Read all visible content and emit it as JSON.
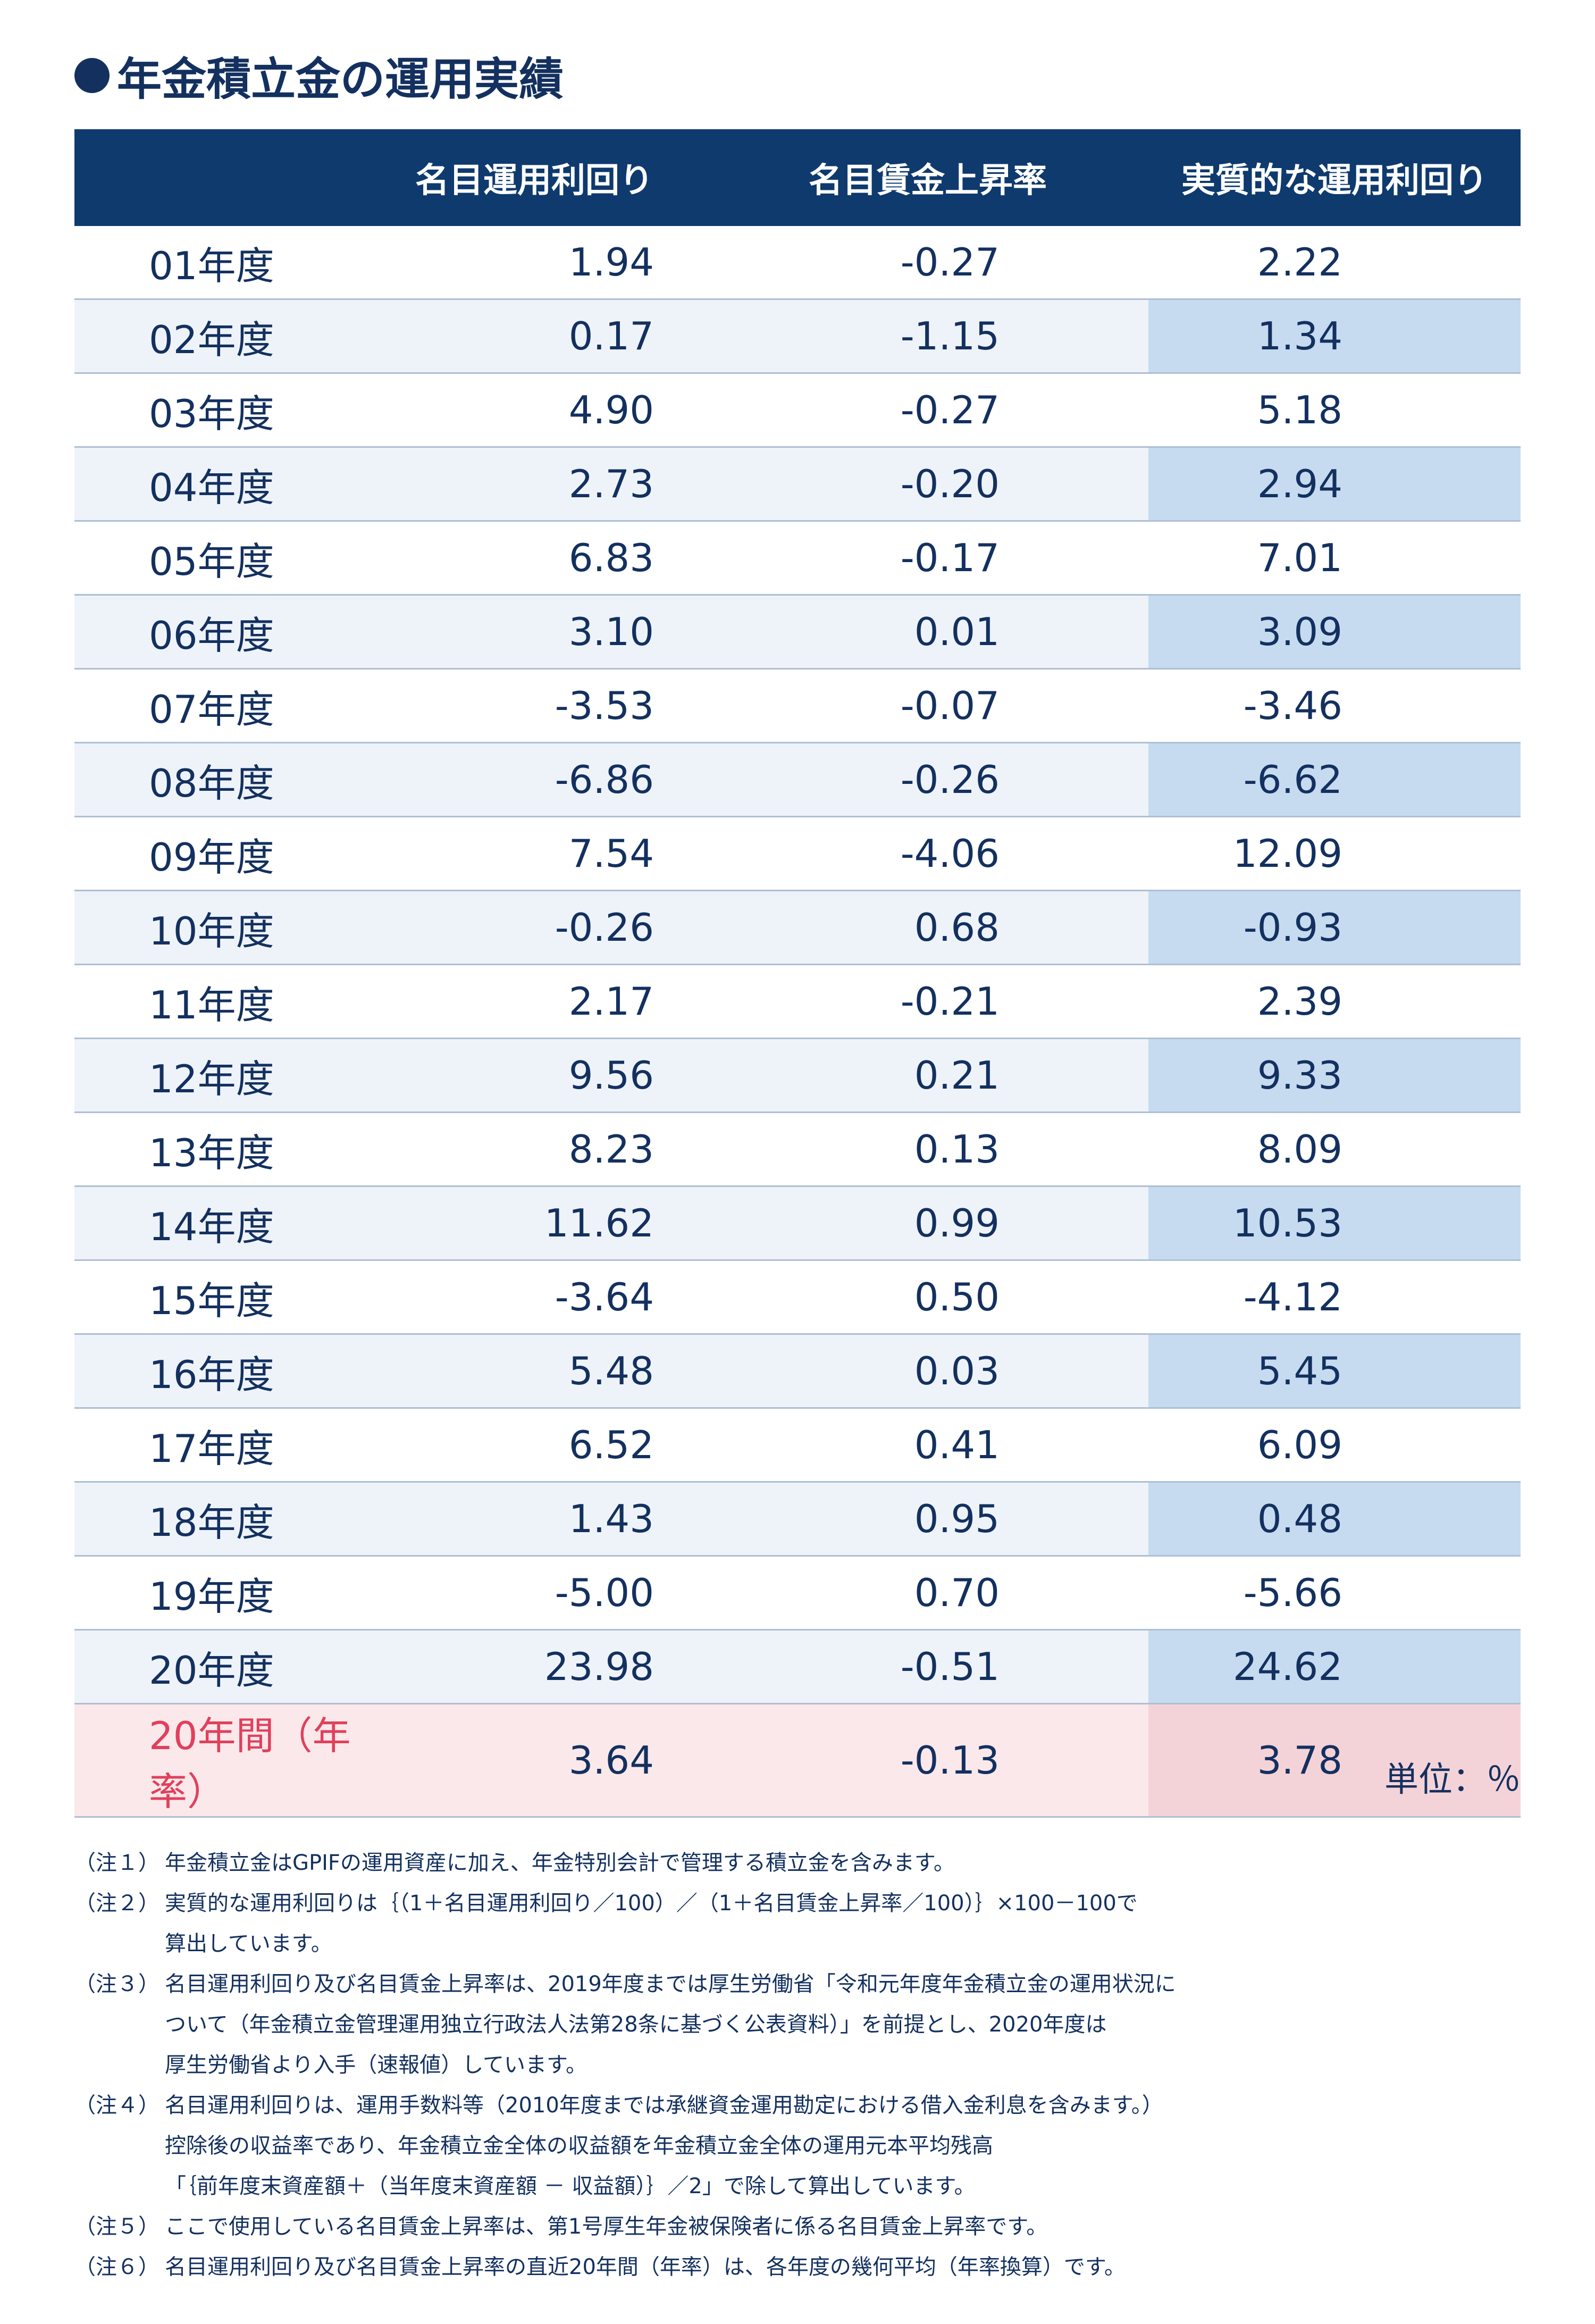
{
  "title": "年金積立金の運用実績",
  "columns": [
    "",
    "名目運用利回り",
    "名目賃金上昇率",
    "実質的な運用利回り"
  ],
  "rows": [
    {
      "year": "01年度",
      "nominal_return": "1.94",
      "wage_growth": "-0.27",
      "real_return": "2.22"
    },
    {
      "year": "02年度",
      "nominal_return": "0.17",
      "wage_growth": "-1.15",
      "real_return": "1.34"
    },
    {
      "year": "03年度",
      "nominal_return": "4.90",
      "wage_growth": "-0.27",
      "real_return": "5.18"
    },
    {
      "year": "04年度",
      "nominal_return": "2.73",
      "wage_growth": "-0.20",
      "real_return": "2.94"
    },
    {
      "year": "05年度",
      "nominal_return": "6.83",
      "wage_growth": "-0.17",
      "real_return": "7.01"
    },
    {
      "year": "06年度",
      "nominal_return": "3.10",
      "wage_growth": "0.01",
      "real_return": "3.09"
    },
    {
      "year": "07年度",
      "nominal_return": "-3.53",
      "wage_growth": "-0.07",
      "real_return": "-3.46"
    },
    {
      "year": "08年度",
      "nominal_return": "-6.86",
      "wage_growth": "-0.26",
      "real_return": "-6.62"
    },
    {
      "year": "09年度",
      "nominal_return": "7.54",
      "wage_growth": "-4.06",
      "real_return": "12.09"
    },
    {
      "year": "10年度",
      "nominal_return": "-0.26",
      "wage_growth": "0.68",
      "real_return": "-0.93"
    },
    {
      "year": "11年度",
      "nominal_return": "2.17",
      "wage_growth": "-0.21",
      "real_return": "2.39"
    },
    {
      "year": "12年度",
      "nominal_return": "9.56",
      "wage_growth": "0.21",
      "real_return": "9.33"
    },
    {
      "year": "13年度",
      "nominal_return": "8.23",
      "wage_growth": "0.13",
      "real_return": "8.09"
    },
    {
      "year": "14年度",
      "nominal_return": "11.62",
      "wage_growth": "0.99",
      "real_return": "10.53"
    },
    {
      "year": "15年度",
      "nominal_return": "-3.64",
      "wage_growth": "0.50",
      "real_return": "-4.12"
    },
    {
      "year": "16年度",
      "nominal_return": "5.48",
      "wage_growth": "0.03",
      "real_return": "5.45"
    },
    {
      "year": "17年度",
      "nominal_return": "6.52",
      "wage_growth": "0.41",
      "real_return": "6.09"
    },
    {
      "year": "18年度",
      "nominal_return": "1.43",
      "wage_growth": "0.95",
      "real_return": "0.48"
    },
    {
      "year": "19年度",
      "nominal_return": "-5.00",
      "wage_growth": "0.70",
      "real_return": "-5.66"
    },
    {
      "year": "20年度",
      "nominal_return": "23.98",
      "wage_growth": "-0.51",
      "real_return": "24.62"
    }
  ],
  "total": {
    "year": "20年間（年率）",
    "nominal_return": "3.64",
    "wage_growth": "-0.13",
    "real_return": "3.78"
  },
  "unit": "単位：％",
  "notes": [
    {
      "label": "（注１）",
      "lines": [
        "年金積立金はGPIFの運用資産に加え、年金特別会計で管理する積立金を含みます。"
      ]
    },
    {
      "label": "（注２）",
      "lines": [
        "実質的な運用利回りは｛（1＋名目運用利回り／100）／（1＋名目賃金上昇率／100）｝×100－100で",
        "算出しています。"
      ]
    },
    {
      "label": "（注３）",
      "lines": [
        "名目運用利回り及び名目賃金上昇率は、2019年度までは厚生労働省「令和元年度年金積立金の運用状況に",
        "ついて（年金積立金管理運用独立行政法人法第28条に基づく公表資料）」を前提とし、2020年度は",
        "厚生労働省より入手（速報値）しています。"
      ]
    },
    {
      "label": "（注４）",
      "lines": [
        "名目運用利回りは、運用手数料等（2010年度までは承継資金運用勘定における借入金利息を含みます。）",
        "控除後の収益率であり、年金積立金全体の収益額を年金積立金全体の運用元本平均残高",
        "「｛前年度末資産額＋（当年度末資産額 － 収益額）｝／2」で除して算出しています。"
      ]
    },
    {
      "label": "（注５）",
      "lines": [
        "ここで使用している名目賃金上昇率は、第1号厚生年金被保険者に係る名目賃金上昇率です。"
      ]
    },
    {
      "label": "（注６）",
      "lines": [
        "名目運用利回り及び名目賃金上昇率の直近20年間（年率）は、各年度の幾何平均（年率換算）です。"
      ]
    }
  ]
}
